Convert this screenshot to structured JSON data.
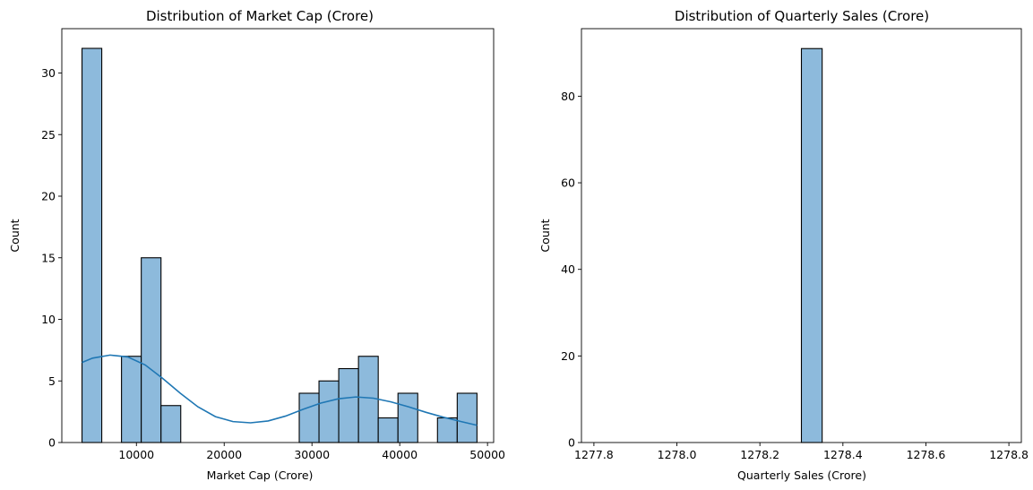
{
  "chart_data": [
    {
      "type": "bar",
      "subtype": "histogram",
      "title": "Distribution of Market Cap (Crore)",
      "xlabel": "Market Cap (Crore)",
      "ylabel": "Count",
      "xlim": [
        1500,
        50700
      ],
      "ylim": [
        0,
        33.6
      ],
      "xticks": [
        10000,
        20000,
        30000,
        40000,
        50000
      ],
      "yticks": [
        0,
        5,
        10,
        15,
        20,
        25,
        30
      ],
      "bin_edges": [
        3800,
        6050,
        8300,
        10550,
        12800,
        15050,
        17300,
        19550,
        21800,
        24050,
        26300,
        28550,
        30800,
        33050,
        35300,
        37550,
        39800,
        42050,
        44300,
        46550,
        48800
      ],
      "values": [
        32,
        0,
        7,
        15,
        3,
        0,
        0,
        0,
        0,
        0,
        0,
        4,
        5,
        6,
        7,
        2,
        4,
        0,
        2,
        4
      ],
      "kde": {
        "x": [
          3800,
          5000,
          7000,
          9000,
          11000,
          13000,
          15000,
          17000,
          19000,
          21000,
          23000,
          25000,
          27000,
          29000,
          31000,
          33000,
          35000,
          37000,
          39000,
          41000,
          43000,
          45000,
          47000,
          48800
        ],
        "y": [
          6.5,
          6.85,
          7.1,
          6.95,
          6.3,
          5.2,
          4.0,
          2.9,
          2.1,
          1.7,
          1.6,
          1.75,
          2.15,
          2.7,
          3.2,
          3.55,
          3.7,
          3.6,
          3.3,
          2.9,
          2.45,
          2.05,
          1.7,
          1.4
        ]
      },
      "bar_color": "#8dbadc",
      "line_color": "#1f77b4",
      "grid": false,
      "legend": "none"
    },
    {
      "type": "bar",
      "subtype": "histogram",
      "title": "Distribution of Quarterly Sales (Crore)",
      "xlabel": "Quarterly Sales (Crore)",
      "ylabel": "Count",
      "xlim": [
        1277.77,
        1278.83
      ],
      "ylim": [
        0,
        95.6
      ],
      "xticks": [
        1277.8,
        1278.0,
        1278.2,
        1278.4,
        1278.6,
        1278.8
      ],
      "yticks": [
        0,
        20,
        40,
        60,
        80
      ],
      "bin_edges": [
        1277.8,
        1277.85,
        1277.9,
        1277.95,
        1278.0,
        1278.05,
        1278.1,
        1278.15,
        1278.2,
        1278.25,
        1278.3,
        1278.35,
        1278.4,
        1278.45,
        1278.5,
        1278.55,
        1278.6,
        1278.65,
        1278.7,
        1278.75,
        1278.8
      ],
      "values": [
        0,
        0,
        0,
        0,
        0,
        0,
        0,
        0,
        0,
        0,
        91,
        0,
        0,
        0,
        0,
        0,
        0,
        0,
        0,
        0
      ],
      "bar_color": "#8dbadc",
      "grid": false,
      "legend": "none"
    }
  ]
}
